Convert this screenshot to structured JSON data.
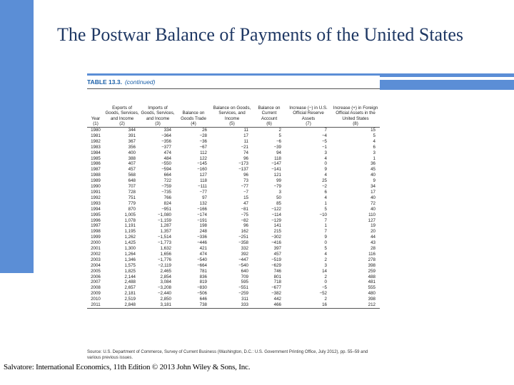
{
  "slide": {
    "title": "The Postwar Balance of Payments of the United States",
    "caption": "Salvatore: International Economics, 11th Edition © 2013 John Wiley & Sons, Inc.",
    "accent_color": "#5b8ed6",
    "title_color": "#1f3864"
  },
  "table": {
    "label": "TABLE 13.3.",
    "sublabel": "(continued)",
    "headers": [
      [
        "Year",
        "(1)"
      ],
      [
        "Exports of Goods, Services, and Income",
        "(2)"
      ],
      [
        "Imports of Goods, Services, and Income",
        "(3)"
      ],
      [
        "Balance on Goods Trade",
        "(4)"
      ],
      [
        "Balance on Goods, Services, and Income",
        "(5)"
      ],
      [
        "Balance on Current Account",
        "(6)"
      ],
      [
        "Increase (−) in U.S. Official Reserve Assets",
        "(7)"
      ],
      [
        "Increase (+) in Foreign Official Assets in the United States",
        "(8)"
      ]
    ],
    "rows": [
      [
        "1980",
        "344",
        "334",
        "26",
        "11",
        "2",
        "7",
        "15"
      ],
      [
        "1981",
        "391",
        "−364",
        "−28",
        "17",
        "5",
        "−4",
        "5"
      ],
      [
        "1982",
        "367",
        "−356",
        "−36",
        "11",
        "−6",
        "−5",
        "4"
      ],
      [
        "1983",
        "356",
        "−377",
        "−67",
        "−21",
        "−39",
        "−1",
        "6"
      ],
      [
        "1984",
        "400",
        "474",
        "112",
        "74",
        "94",
        "3",
        "3"
      ],
      [
        "1985",
        "388",
        "484",
        "122",
        "96",
        "118",
        "4",
        "1"
      ],
      [
        "1986",
        "407",
        "−550",
        "−145",
        "−173",
        "−147",
        "0",
        "36"
      ],
      [
        "1987",
        "457",
        "−594",
        "−160",
        "−137",
        "−141",
        "9",
        "45"
      ],
      [
        "1988",
        "568",
        "664",
        "127",
        "96",
        "121",
        "4",
        "40"
      ],
      [
        "1989",
        "648",
        "722",
        "118",
        "73",
        "99",
        "25",
        "9"
      ],
      [
        "1990",
        "707",
        "−759",
        "−111",
        "−77",
        "−79",
        "−2",
        "34"
      ],
      [
        "1991",
        "728",
        "−735",
        "−77",
        "−7",
        "3",
        "6",
        "17"
      ],
      [
        "1992",
        "751",
        "766",
        "97",
        "15",
        "50",
        "4",
        "40"
      ],
      [
        "1993",
        "779",
        "824",
        "132",
        "47",
        "85",
        "1",
        "72"
      ],
      [
        "1994",
        "870",
        "−951",
        "−166",
        "−81",
        "−122",
        "5",
        "40"
      ],
      [
        "1995",
        "1,005",
        "−1,080",
        "−174",
        "−75",
        "−114",
        "−10",
        "110"
      ],
      [
        "1996",
        "1,078",
        "−1,159",
        "−191",
        "−82",
        "−129",
        "7",
        "127"
      ],
      [
        "1997",
        "1,191",
        "1,287",
        "198",
        "96",
        "141",
        "1",
        "19"
      ],
      [
        "1998",
        "1,195",
        "1,357",
        "248",
        "162",
        "215",
        "7",
        "20"
      ],
      [
        "1999",
        "1,262",
        "−1,514",
        "−336",
        "−251",
        "−302",
        "9",
        "44"
      ],
      [
        "2000",
        "1,425",
        "−1,773",
        "−446",
        "−358",
        "−416",
        "0",
        "43"
      ],
      [
        "2001",
        "1,300",
        "1,632",
        "421",
        "332",
        "397",
        "5",
        "28"
      ],
      [
        "2002",
        "1,264",
        "1,656",
        "474",
        "392",
        "457",
        "4",
        "116"
      ],
      [
        "2003",
        "1,346",
        "−1,776",
        "−540",
        "−447",
        "−519",
        "2",
        "278"
      ],
      [
        "2004",
        "1,575",
        "−2,119",
        "−664",
        "−540",
        "−629",
        "3",
        "398"
      ],
      [
        "2005",
        "1,825",
        "2,465",
        "781",
        "640",
        "746",
        "14",
        "259"
      ],
      [
        "2006",
        "2,144",
        "2,854",
        "836",
        "709",
        "801",
        "2",
        "488"
      ],
      [
        "2007",
        "2,488",
        "3,084",
        "819",
        "595",
        "718",
        "0",
        "481"
      ],
      [
        "2008",
        "2,657",
        "−3,208",
        "−830",
        "−551",
        "−677",
        "−5",
        "555"
      ],
      [
        "2009",
        "2,181",
        "−2,440",
        "−506",
        "−259",
        "−382",
        "−52",
        "480"
      ],
      [
        "2010",
        "2,519",
        "2,850",
        "646",
        "311",
        "442",
        "2",
        "398"
      ],
      [
        "2011",
        "2,848",
        "3,181",
        "738",
        "333",
        "466",
        "16",
        "212"
      ]
    ],
    "source": "Source: U.S. Department of Commerce, Survey of Current Business (Washington, D.C.: U.S. Government Printing Office, July 2012), pp. 55–59 and various previous issues."
  }
}
